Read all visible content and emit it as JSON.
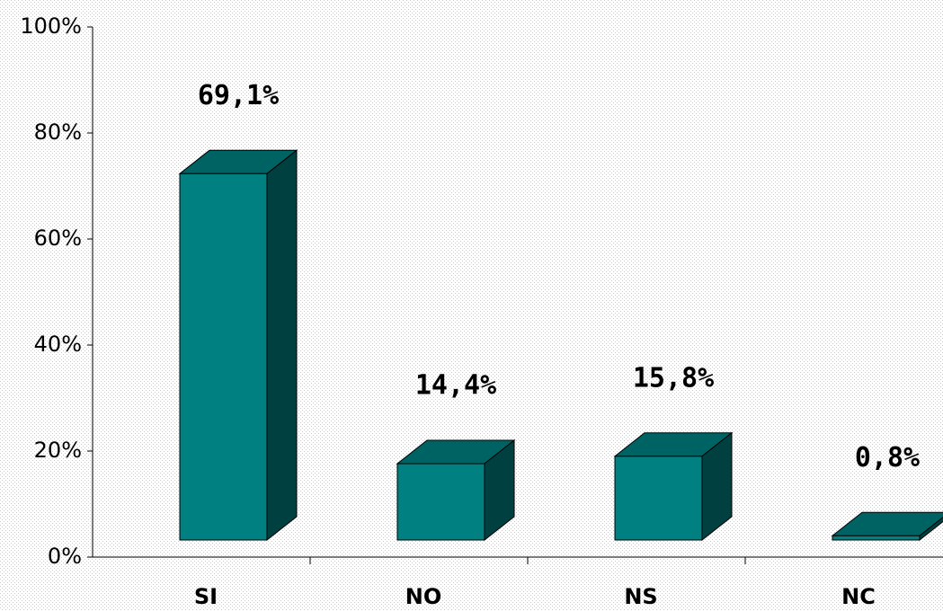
{
  "chart_data": {
    "type": "bar3d",
    "categories": [
      "SI",
      "NO",
      "NS",
      "NC"
    ],
    "values": [
      69.1,
      14.4,
      15.8,
      0.8
    ],
    "value_labels": [
      "69,1%",
      "14,4%",
      "15,8%",
      "0,8%"
    ],
    "colors": {
      "front": "#008080",
      "top": "#006363",
      "side": "#004040"
    },
    "ylim": [
      0,
      100
    ],
    "yticks": [
      {
        "value": 0,
        "label": "0%"
      },
      {
        "value": 20,
        "label": "20%"
      },
      {
        "value": 40,
        "label": "40%"
      },
      {
        "value": 60,
        "label": "60%"
      },
      {
        "value": 80,
        "label": "80%"
      },
      {
        "value": 100,
        "label": "100%"
      }
    ],
    "grid": false
  }
}
